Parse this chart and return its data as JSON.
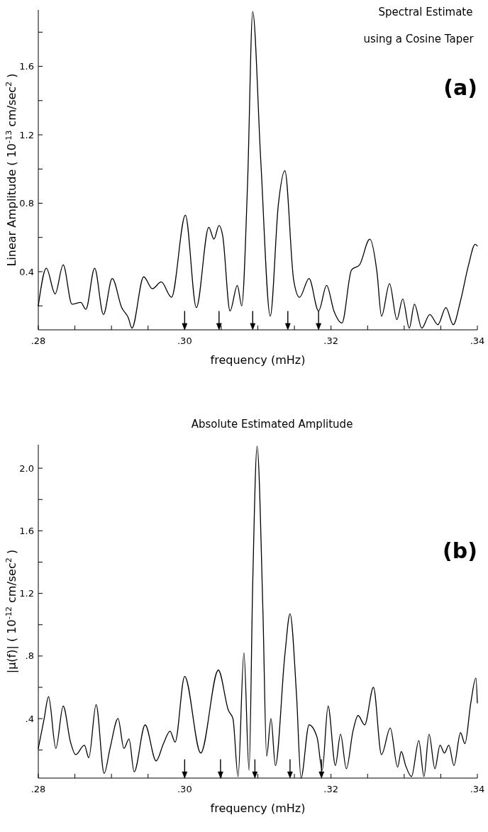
{
  "chart_data": [
    {
      "type": "line",
      "title": "Spectral Estimate",
      "subtitle": "using a Cosine Taper",
      "annotations": [
        "(a)"
      ],
      "xlabel": "frequency (mHz)",
      "ylabel": "Linear Amplitude  ( 10$^{-13}$ cm/sec$^{2}$ )",
      "xlim": [
        0.28,
        0.34
      ],
      "xticks": [
        {
          "value": 0.28,
          "label": ".28"
        },
        {
          "value": 0.285,
          "label": null
        },
        {
          "value": 0.29,
          "label": null
        },
        {
          "value": 0.295,
          "label": null
        },
        {
          "value": 0.3,
          "label": ".30"
        },
        {
          "value": 0.305,
          "label": null
        },
        {
          "value": 0.31,
          "label": null
        },
        {
          "value": 0.315,
          "label": null
        },
        {
          "value": 0.32,
          "label": ".32"
        },
        {
          "value": 0.325,
          "label": null
        },
        {
          "value": 0.33,
          "label": null
        },
        {
          "value": 0.335,
          "label": null
        },
        {
          "value": 0.34,
          "label": ".34"
        }
      ],
      "ylim": [
        0.06,
        1.93
      ],
      "yticks": [
        {
          "value": 0.2,
          "label": null
        },
        0.4,
        {
          "value": 0.6,
          "label": null
        },
        0.8,
        {
          "value": 1.0,
          "label": null
        },
        1.2,
        {
          "value": 1.4,
          "label": null
        },
        1.6,
        {
          "value": 1.8,
          "label": null
        }
      ],
      "series": [
        {
          "color": "#000000",
          "x": [
            0.28,
            0.2811,
            0.2823,
            0.2834,
            0.2846,
            0.2858,
            0.2865,
            0.2877,
            0.2889,
            0.2901,
            0.2914,
            0.2923,
            0.2928,
            0.2944,
            0.2956,
            0.2968,
            0.2982,
            0.3001,
            0.3016,
            0.3033,
            0.304,
            0.3047,
            0.3052,
            0.3062,
            0.3072,
            0.3078,
            0.3086,
            0.3093,
            0.3104,
            0.3117,
            0.3128,
            0.3137,
            0.3149,
            0.3157,
            0.317,
            0.3183,
            0.3194,
            0.3204,
            0.3215,
            0.3228,
            0.3239,
            0.3253,
            0.3263,
            0.3269,
            0.328,
            0.329,
            0.3298,
            0.3307,
            0.3314,
            0.3324,
            0.3335,
            0.3346,
            0.3357,
            0.3367,
            0.3377,
            0.3388,
            0.3397,
            0.34
          ],
          "values": [
            0.2,
            0.42,
            0.27,
            0.44,
            0.21,
            0.22,
            0.18,
            0.42,
            0.15,
            0.36,
            0.19,
            0.13,
            0.07,
            0.37,
            0.3,
            0.34,
            0.25,
            0.73,
            0.19,
            0.66,
            0.59,
            0.67,
            0.61,
            0.17,
            0.32,
            0.2,
            0.92,
            1.92,
            1.05,
            0.14,
            0.79,
            0.99,
            0.35,
            0.25,
            0.36,
            0.17,
            0.32,
            0.17,
            0.1,
            0.41,
            0.44,
            0.59,
            0.39,
            0.14,
            0.33,
            0.12,
            0.24,
            0.07,
            0.21,
            0.07,
            0.15,
            0.09,
            0.19,
            0.09,
            0.23,
            0.44,
            0.56,
            0.55
          ]
        },
        {
          "type": "scatter",
          "color": "#000000",
          "x": [
            0.3,
            0.3047,
            0.3093,
            0.3141,
            0.3183
          ],
          "values": [
            0.079,
            0.079,
            0.079,
            0.079,
            0.079
          ]
        }
      ]
    },
    {
      "type": "line",
      "title": "Absolute Estimated Amplitude",
      "annotations": [
        "(b)"
      ],
      "xlabel": "frequency (mHz)",
      "ylabel": "|μ(f)| ( 10$^{-12}$ cm/sec$^{2}$ )",
      "xlim": [
        0.28,
        0.34
      ],
      "xticks": [
        {
          "value": 0.28,
          "label": ".28"
        },
        {
          "value": 0.285,
          "label": null
        },
        {
          "value": 0.29,
          "label": null
        },
        {
          "value": 0.295,
          "label": null
        },
        {
          "value": 0.3,
          "label": ".30"
        },
        {
          "value": 0.305,
          "label": null
        },
        {
          "value": 0.31,
          "label": null
        },
        {
          "value": 0.315,
          "label": null
        },
        {
          "value": 0.32,
          "label": ".32"
        },
        {
          "value": 0.325,
          "label": null
        },
        {
          "value": 0.33,
          "label": null
        },
        {
          "value": 0.335,
          "label": null
        },
        {
          "value": 0.34,
          "label": ".34"
        }
      ],
      "ylim": [
        0.02,
        2.15
      ],
      "yticks": [
        {
          "value": 0.2,
          "label": null
        },
        {
          "value": 0.4,
          "label": ".4"
        },
        {
          "value": 0.6,
          "label": null
        },
        {
          "value": 0.8,
          "label": ".8"
        },
        {
          "value": 1.0,
          "label": null
        },
        {
          "value": 1.2,
          "label": "1.2"
        },
        {
          "value": 1.4,
          "label": null
        },
        {
          "value": 1.6,
          "label": "1.6"
        },
        {
          "value": 1.8,
          "label": null
        },
        {
          "value": 2.0,
          "label": "2.0"
        }
      ],
      "series": [
        {
          "color": "#000000",
          "x": [
            0.28,
            0.2808,
            0.2814,
            0.2824,
            0.2834,
            0.2844,
            0.2851,
            0.2863,
            0.2869,
            0.2879,
            0.289,
            0.2898,
            0.2909,
            0.2917,
            0.2924,
            0.2931,
            0.2946,
            0.2961,
            0.2971,
            0.298,
            0.2987,
            0.3,
            0.3022,
            0.3046,
            0.306,
            0.3066,
            0.3073,
            0.3081,
            0.3088,
            0.3093,
            0.3099,
            0.3107,
            0.3112,
            0.3118,
            0.3124,
            0.3137,
            0.3144,
            0.3153,
            0.3159,
            0.317,
            0.3181,
            0.3188,
            0.3196,
            0.3206,
            0.3213,
            0.3221,
            0.323,
            0.3237,
            0.3246,
            0.3258,
            0.3269,
            0.3281,
            0.3291,
            0.3296,
            0.3302,
            0.331,
            0.332,
            0.3327,
            0.3334,
            0.3342,
            0.3349,
            0.3355,
            0.3361,
            0.3368,
            0.3377,
            0.3383,
            0.3391,
            0.3398,
            0.34
          ],
          "values": [
            0.21,
            0.4,
            0.54,
            0.21,
            0.48,
            0.25,
            0.17,
            0.23,
            0.15,
            0.49,
            0.05,
            0.21,
            0.4,
            0.21,
            0.27,
            0.06,
            0.36,
            0.13,
            0.24,
            0.32,
            0.25,
            0.67,
            0.18,
            0.71,
            0.45,
            0.4,
            0.03,
            0.82,
            0.07,
            1.26,
            2.14,
            1.08,
            0.16,
            0.4,
            0.1,
            0.81,
            1.07,
            0.54,
            0.02,
            0.36,
            0.28,
            0.07,
            0.48,
            0.1,
            0.3,
            0.08,
            0.32,
            0.42,
            0.36,
            0.6,
            0.17,
            0.34,
            0.09,
            0.19,
            0.1,
            0.03,
            0.26,
            0.03,
            0.3,
            0.08,
            0.23,
            0.18,
            0.23,
            0.1,
            0.31,
            0.24,
            0.5,
            0.66,
            0.5
          ]
        },
        {
          "type": "scatter",
          "color": "#000000",
          "x": [
            0.3,
            0.3049,
            0.3096,
            0.3144,
            0.3187
          ],
          "values": [
            0.04,
            0.04,
            0.04,
            0.04,
            0.04
          ]
        }
      ]
    }
  ]
}
